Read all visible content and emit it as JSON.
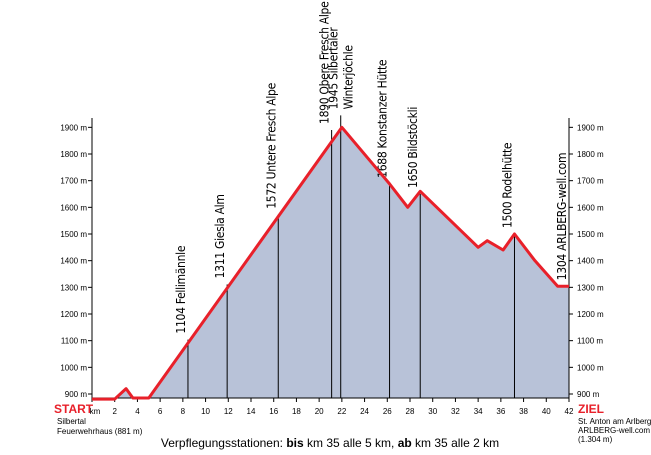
{
  "chart_data": {
    "type": "elevation-profile",
    "x": [
      0,
      2,
      3,
      3.6,
      5,
      22,
      26.2,
      27.8,
      28.9,
      34,
      34.8,
      36.2,
      37.2,
      39,
      41,
      42
    ],
    "values": [
      881,
      881,
      920,
      885,
      885,
      1900,
      1688,
      1600,
      1660,
      1450,
      1475,
      1440,
      1500,
      1400,
      1304,
      1304
    ],
    "color": "#e8202a",
    "fill": "#b8c2d8",
    "xlim": [
      0,
      42
    ],
    "ylim": [
      885,
      1935
    ],
    "xticks": [
      {
        "value": 0,
        "label": "km"
      },
      2,
      4,
      6,
      8,
      10,
      12,
      14,
      16,
      18,
      20,
      22,
      24,
      26,
      28,
      30,
      32,
      34,
      36,
      38,
      40,
      42
    ],
    "yticks": [
      {
        "value": 900,
        "label": "900 m"
      },
      {
        "value": 1000,
        "label": "1000 m"
      },
      {
        "value": 1100,
        "label": "1100 m"
      },
      {
        "value": 1200,
        "label": "1200 m"
      },
      {
        "value": 1300,
        "label": "1300 m"
      },
      {
        "value": 1400,
        "label": "1400 m"
      },
      {
        "value": 1500,
        "label": "1500 m"
      },
      {
        "value": 1600,
        "label": "1600 m"
      },
      {
        "value": 1700,
        "label": "1700 m"
      },
      {
        "value": 1800,
        "label": "1800 m"
      },
      {
        "value": 1900,
        "label": "1900 m"
      }
    ],
    "stations": [
      {
        "km": 8.45,
        "elevation": 1104,
        "name_lines": [
          "Fellimännle"
        ]
      },
      {
        "km": 11.9,
        "elevation": 1311,
        "name_lines": [
          "Giesla Alm"
        ]
      },
      {
        "km": 16.4,
        "elevation": 1572,
        "name_lines": [
          "Untere Fresch Alpe"
        ]
      },
      {
        "km": 21.1,
        "elevation": 1890,
        "name_lines": [
          "Obere Fresch Alpe"
        ]
      },
      {
        "km": 21.9,
        "elevation": 1945,
        "name_lines": [
          "Silbertaler",
          "Winterjöchle"
        ]
      },
      {
        "km": 26.2,
        "elevation": 1688,
        "name_lines": [
          "Konstanzer Hütte"
        ]
      },
      {
        "km": 28.9,
        "elevation": 1650,
        "name_lines": [
          "Bildstöckli"
        ]
      },
      {
        "km": 37.2,
        "elevation": 1500,
        "name_lines": [
          "Rodelhütte"
        ]
      },
      {
        "km": 42,
        "elevation": 1304,
        "name_lines": [
          "ARLBERG-well.com"
        ]
      }
    ],
    "start": {
      "label": "START",
      "lines": [
        "Silbertal",
        "Feuerwehrhaus (881 m)"
      ]
    },
    "finish": {
      "label": "ZIEL",
      "lines": [
        "St. Anton am Arlberg",
        "ARLBERG-well.com",
        "(1.304 m)"
      ]
    },
    "footer": [
      "Verpflegungsstationen: ",
      "bis",
      " km 35 alle 5 km, ",
      "ab",
      " km 35 alle 2 km"
    ]
  }
}
